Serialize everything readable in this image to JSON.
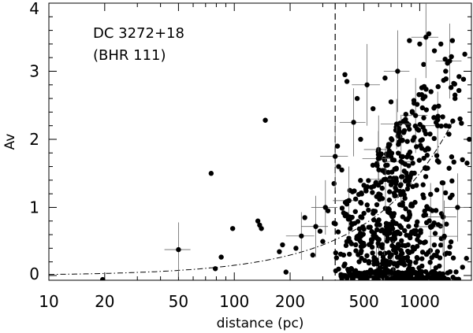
{
  "chart_data": {
    "type": "scatter",
    "title": "",
    "xlabel": "distance (pc)",
    "ylabel": "Av",
    "xscale": "log",
    "xlim": [
      10,
      1900
    ],
    "ylim": [
      -0.07,
      4.0
    ],
    "annotation_lines": [
      "DC 3272+18",
      "(BHR 111)"
    ],
    "x_ticks": [
      {
        "value": 10,
        "label": "10"
      },
      {
        "value": 20,
        "label": "20"
      },
      {
        "value": 50,
        "label": "50"
      },
      {
        "value": 100,
        "label": "100"
      },
      {
        "value": 200,
        "label": "200"
      },
      {
        "value": 500,
        "label": "500"
      },
      {
        "value": 1000,
        "label": "1000"
      }
    ],
    "y_ticks": [
      {
        "value": 0,
        "label": "0"
      },
      {
        "value": 1,
        "label": "1"
      },
      {
        "value": 2,
        "label": "2"
      },
      {
        "value": 3,
        "label": "3"
      },
      {
        "value": 4,
        "label": "4"
      }
    ],
    "cloud_distance": 350,
    "model_curve": {
      "coefficient_per_pc": 0.0015,
      "min_distance": 10,
      "max_distance": 1500
    },
    "points": [
      {
        "x": 19.5,
        "y": -0.06
      },
      {
        "x": 50,
        "y": 0.38,
        "xerr": 8,
        "yerr": 0.4
      },
      {
        "x": 75,
        "y": 1.5
      },
      {
        "x": 79,
        "y": 0.1
      },
      {
        "x": 85,
        "y": 0.27
      },
      {
        "x": 98,
        "y": 0.69
      },
      {
        "x": 134,
        "y": 0.8
      },
      {
        "x": 137,
        "y": 0.74
      },
      {
        "x": 140,
        "y": 0.69
      },
      {
        "x": 147,
        "y": 2.28
      },
      {
        "x": 175,
        "y": 0.35
      },
      {
        "x": 182,
        "y": 0.45
      },
      {
        "x": 190,
        "y": 0.05
      },
      {
        "x": 215,
        "y": 0.4
      },
      {
        "x": 230,
        "y": 0.58,
        "xerr": 40,
        "yerr": 0.35
      },
      {
        "x": 240,
        "y": 0.85
      },
      {
        "x": 265,
        "y": 0.3
      },
      {
        "x": 275,
        "y": 0.72,
        "xerr": 45,
        "yerr": 0.45
      },
      {
        "x": 290,
        "y": 0.65
      },
      {
        "x": 300,
        "y": 0.5
      },
      {
        "x": 310,
        "y": 1.0,
        "xerr": 50,
        "yerr": 0.4
      },
      {
        "x": 320,
        "y": 0.95
      },
      {
        "x": 345,
        "y": 1.35
      },
      {
        "x": 350,
        "y": 1.75,
        "xerr": 60,
        "yerr": 0.5
      },
      {
        "x": 360,
        "y": 1.9
      },
      {
        "x": 365,
        "y": 1.6
      },
      {
        "x": 380,
        "y": 1.55
      },
      {
        "x": 395,
        "y": 2.95
      },
      {
        "x": 405,
        "y": 2.85
      },
      {
        "x": 420,
        "y": 1.25
      },
      {
        "x": 440,
        "y": 2.25,
        "xerr": 70,
        "yerr": 0.5
      },
      {
        "x": 460,
        "y": 2.6
      },
      {
        "x": 480,
        "y": 2.0
      },
      {
        "x": 520,
        "y": 2.8,
        "xerr": 90,
        "yerr": 0.6
      },
      {
        "x": 560,
        "y": 2.45
      },
      {
        "x": 600,
        "y": 1.85,
        "xerr": 100,
        "yerr": 0.5
      },
      {
        "x": 650,
        "y": 2.9
      },
      {
        "x": 700,
        "y": 2.55
      },
      {
        "x": 760,
        "y": 3.0,
        "xerr": 120,
        "yerr": 0.6
      },
      {
        "x": 820,
        "y": 2.1
      },
      {
        "x": 880,
        "y": 3.45
      },
      {
        "x": 950,
        "y": 2.35,
        "xerr": 150,
        "yerr": 0.55
      },
      {
        "x": 1000,
        "y": 3.4
      },
      {
        "x": 1050,
        "y": 3.1
      },
      {
        "x": 1080,
        "y": 3.5,
        "xerr": 180,
        "yerr": 0.6
      },
      {
        "x": 1120,
        "y": 3.55
      },
      {
        "x": 1150,
        "y": 2.7
      },
      {
        "x": 1200,
        "y": 3.3
      },
      {
        "x": 1250,
        "y": 2.2,
        "xerr": 200,
        "yerr": 0.5
      },
      {
        "x": 1300,
        "y": 3.4
      },
      {
        "x": 1380,
        "y": 3.0
      },
      {
        "x": 1450,
        "y": 3.15,
        "xerr": 230,
        "yerr": 0.55
      },
      {
        "x": 1500,
        "y": 3.45
      },
      {
        "x": 1550,
        "y": 2.6
      },
      {
        "x": 1600,
        "y": 1.0,
        "xerr": 250,
        "yerr": 0.5
      },
      {
        "x": 1650,
        "y": 2.3
      },
      {
        "x": 1700,
        "y": 1.7
      },
      {
        "x": 1750,
        "y": 3.25
      },
      {
        "x": 1800,
        "y": 1.65
      },
      {
        "x": 1850,
        "y": 2.0
      }
    ],
    "field_population": {
      "count": 720,
      "x_min": 330,
      "x_max": 1850,
      "x_mode": 700,
      "y_min": -0.06,
      "y_max": 3.4
    }
  }
}
